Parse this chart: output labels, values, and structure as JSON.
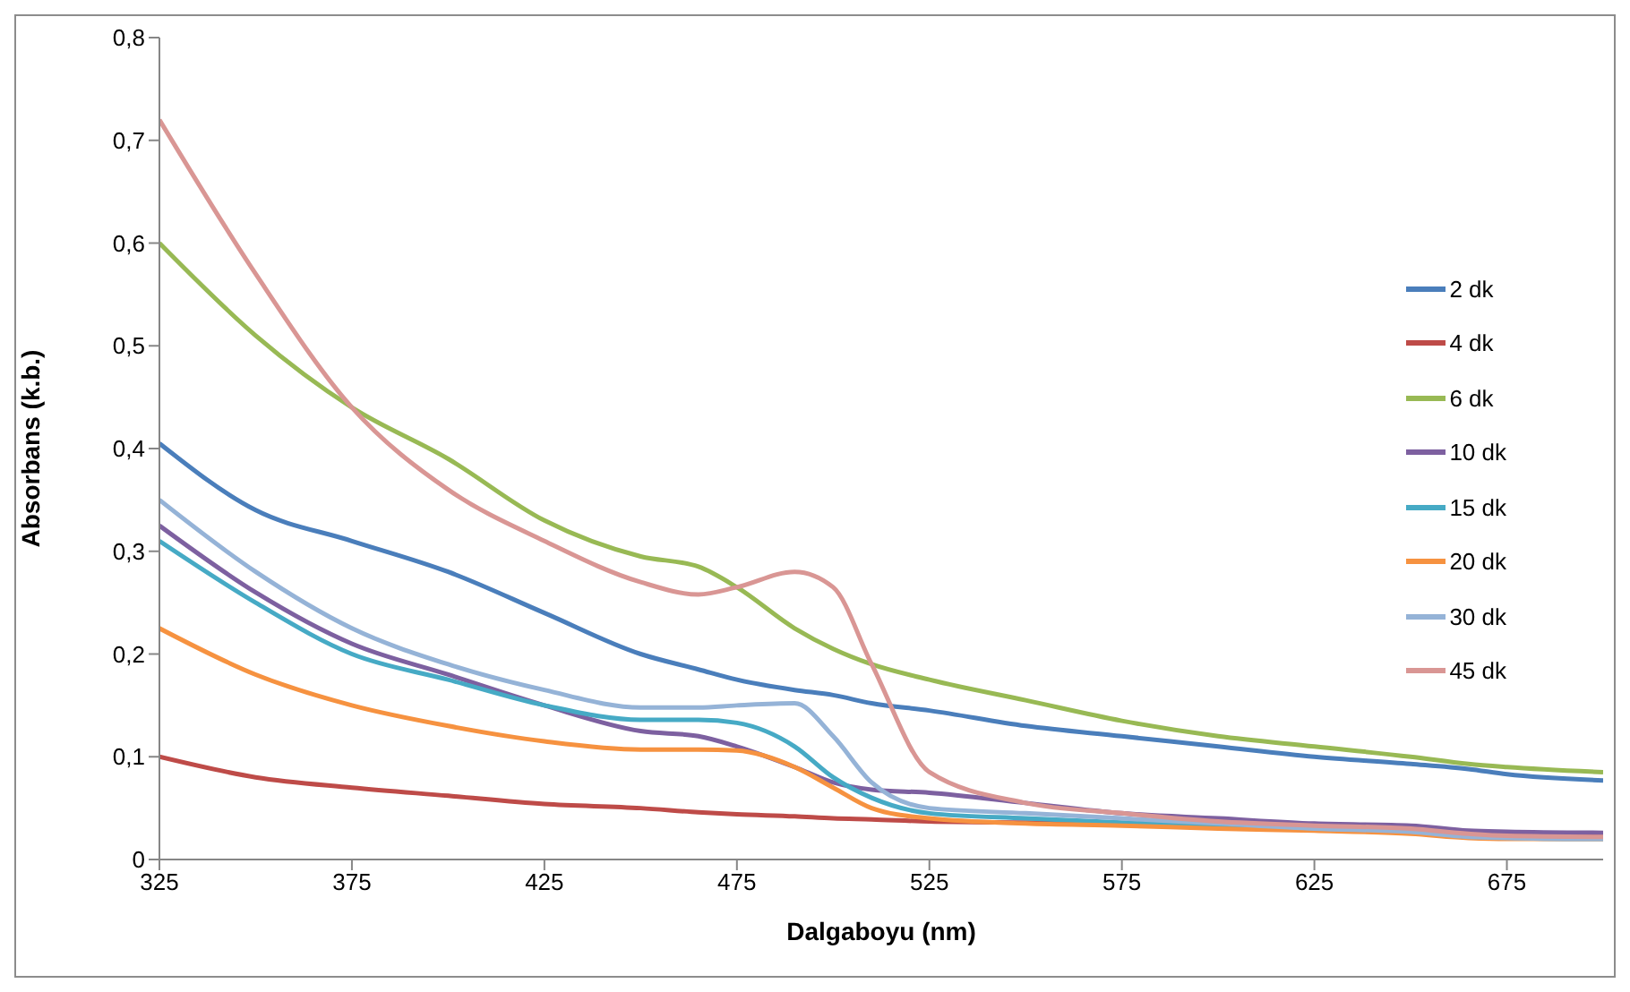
{
  "chart_data": {
    "type": "line",
    "xlabel": "Dalgaboyu (nm)",
    "ylabel": "Absorbans (k.b.)",
    "x": [
      325,
      350,
      375,
      400,
      425,
      450,
      465,
      475,
      490,
      500,
      510,
      525,
      550,
      575,
      600,
      625,
      650,
      665,
      675,
      700
    ],
    "xlim": [
      325,
      700
    ],
    "xticks": [
      325,
      375,
      425,
      475,
      525,
      575,
      625,
      675
    ],
    "ylim": [
      0,
      0.8
    ],
    "yticks": [
      {
        "value": 0,
        "label": "0"
      },
      {
        "value": 0.1,
        "label": "0,1"
      },
      {
        "value": 0.2,
        "label": "0,2"
      },
      {
        "value": 0.3,
        "label": "0,3"
      },
      {
        "value": 0.4,
        "label": "0,4"
      },
      {
        "value": 0.5,
        "label": "0,5"
      },
      {
        "value": 0.6,
        "label": "0,6"
      },
      {
        "value": 0.7,
        "label": "0,7"
      },
      {
        "value": 0.8,
        "label": "0,8"
      }
    ],
    "grid": false,
    "legend": "right",
    "marker": "none",
    "series": [
      {
        "name": "2 dk",
        "color": "#4a7ebb",
        "values": [
          0.405,
          0.34,
          0.31,
          0.28,
          0.24,
          0.2,
          0.185,
          0.175,
          0.165,
          0.16,
          0.152,
          0.145,
          0.13,
          0.12,
          0.11,
          0.1,
          0.093,
          0.088,
          0.083,
          0.077
        ]
      },
      {
        "name": "4 dk",
        "color": "#be4b48",
        "values": [
          0.1,
          0.08,
          0.07,
          0.062,
          0.054,
          0.05,
          0.046,
          0.044,
          0.042,
          0.04,
          0.039,
          0.037,
          0.036,
          0.035,
          0.033,
          0.031,
          0.029,
          0.027,
          0.025,
          0.024
        ]
      },
      {
        "name": "6 dk",
        "color": "#98b954",
        "values": [
          0.6,
          0.51,
          0.44,
          0.39,
          0.33,
          0.295,
          0.285,
          0.265,
          0.225,
          0.205,
          0.19,
          0.175,
          0.155,
          0.135,
          0.12,
          0.11,
          0.1,
          0.093,
          0.09,
          0.085
        ]
      },
      {
        "name": "10 dk",
        "color": "#7d60a0",
        "values": [
          0.325,
          0.26,
          0.21,
          0.18,
          0.15,
          0.125,
          0.12,
          0.11,
          0.09,
          0.075,
          0.068,
          0.065,
          0.055,
          0.045,
          0.04,
          0.035,
          0.033,
          0.028,
          0.027,
          0.026
        ]
      },
      {
        "name": "15 dk",
        "color": "#46aac5",
        "values": [
          0.31,
          0.25,
          0.2,
          0.175,
          0.15,
          0.136,
          0.136,
          0.133,
          0.11,
          0.08,
          0.06,
          0.045,
          0.04,
          0.036,
          0.033,
          0.03,
          0.028,
          0.022,
          0.021,
          0.02
        ]
      },
      {
        "name": "20 dk",
        "color": "#f69240",
        "values": [
          0.225,
          0.18,
          0.15,
          0.13,
          0.115,
          0.107,
          0.107,
          0.106,
          0.09,
          0.07,
          0.05,
          0.04,
          0.035,
          0.033,
          0.03,
          0.028,
          0.025,
          0.021,
          0.02,
          0.02
        ]
      },
      {
        "name": "30 dk",
        "color": "#95b3d7",
        "values": [
          0.35,
          0.28,
          0.225,
          0.19,
          0.165,
          0.148,
          0.148,
          0.15,
          0.152,
          0.12,
          0.075,
          0.05,
          0.045,
          0.04,
          0.035,
          0.03,
          0.027,
          0.022,
          0.021,
          0.02
        ]
      },
      {
        "name": "45 dk",
        "color": "#d99694",
        "values": [
          0.72,
          0.57,
          0.44,
          0.36,
          0.31,
          0.27,
          0.258,
          0.265,
          0.28,
          0.265,
          0.19,
          0.085,
          0.055,
          0.045,
          0.037,
          0.033,
          0.03,
          0.025,
          0.023,
          0.022
        ]
      }
    ]
  }
}
